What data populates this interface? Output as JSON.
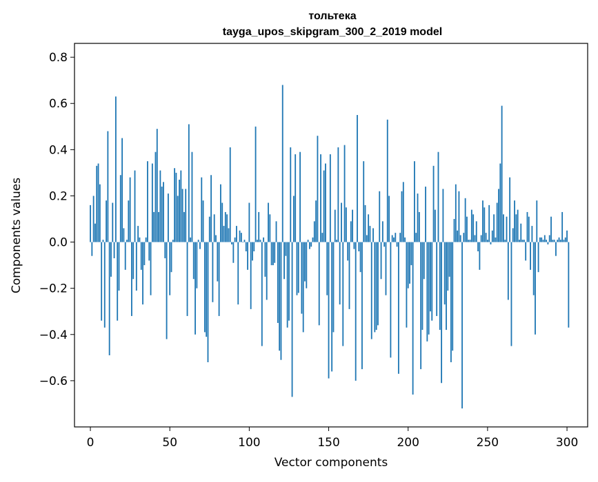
{
  "chart_data": {
    "type": "bar",
    "title": "тольтека",
    "subtitle": "tayga_upos_skipgram_300_2_2019 model",
    "xlabel": "Vector components",
    "ylabel": "Components values",
    "xlim": [
      -10,
      313
    ],
    "ylim": [
      -0.8,
      0.86
    ],
    "xticks": [
      0,
      50,
      100,
      150,
      200,
      250,
      300
    ],
    "yticks": [
      -0.6,
      -0.4,
      -0.2,
      0.0,
      0.2,
      0.4,
      0.6,
      0.8
    ],
    "xtick_labels": [
      "0",
      "50",
      "100",
      "150",
      "200",
      "250",
      "300"
    ],
    "ytick_labels": [
      "−0.6",
      "−0.4",
      "−0.2",
      "0.0",
      "0.2",
      "0.4",
      "0.6",
      "0.8"
    ],
    "bar_color": "#1f77b4",
    "grid": false,
    "values": [
      0.16,
      -0.06,
      0.2,
      0.08,
      0.33,
      0.34,
      0.25,
      -0.34,
      0.01,
      -0.37,
      0.18,
      0.48,
      -0.49,
      -0.15,
      0.17,
      -0.07,
      0.63,
      -0.34,
      -0.21,
      0.29,
      0.45,
      0.06,
      -0.12,
      0.01,
      0.18,
      0.28,
      -0.32,
      -0.16,
      0.31,
      -0.21,
      0.07,
      0.02,
      -0.12,
      -0.27,
      -0.1,
      0.02,
      0.35,
      -0.08,
      -0.23,
      0.34,
      0.13,
      0.39,
      0.49,
      0.13,
      0.31,
      0.24,
      0.26,
      -0.07,
      -0.42,
      0.21,
      -0.23,
      -0.13,
      0.01,
      0.32,
      0.3,
      0.2,
      0.27,
      0.31,
      0.23,
      0.13,
      0.23,
      -0.32,
      0.51,
      0.02,
      0.39,
      -0.16,
      -0.4,
      -0.2,
      0.01,
      -0.03,
      0.28,
      0.18,
      -0.39,
      -0.41,
      -0.52,
      0.11,
      0.29,
      -0.26,
      0.12,
      0.03,
      -0.17,
      -0.32,
      0.25,
      0.17,
      0.07,
      0.13,
      0.12,
      0.06,
      0.41,
      -0.01,
      -0.09,
      0.02,
      0.07,
      -0.27,
      0.05,
      0.04,
      0.0,
      0.01,
      -0.04,
      -0.12,
      0.17,
      -0.29,
      -0.08,
      -0.04,
      0.5,
      0.01,
      0.13,
      0.01,
      -0.45,
      0.02,
      -0.15,
      -0.25,
      0.17,
      0.12,
      -0.1,
      -0.1,
      -0.09,
      0.09,
      -0.35,
      -0.47,
      -0.51,
      0.68,
      -0.16,
      -0.06,
      -0.37,
      -0.34,
      0.41,
      -0.67,
      0.2,
      0.38,
      -0.23,
      -0.22,
      0.39,
      -0.31,
      -0.39,
      -0.17,
      -0.2,
      0.01,
      -0.03,
      -0.02,
      0.02,
      0.09,
      0.18,
      0.46,
      -0.36,
      0.38,
      0.04,
      0.31,
      0.34,
      -0.23,
      -0.59,
      0.38,
      -0.56,
      -0.39,
      0.14,
      0.01,
      0.41,
      -0.27,
      0.17,
      -0.45,
      0.42,
      0.15,
      -0.08,
      -0.29,
      0.09,
      0.14,
      -0.03,
      -0.6,
      0.55,
      -0.04,
      -0.13,
      -0.55,
      0.35,
      0.16,
      0.03,
      0.12,
      0.07,
      -0.42,
      0.06,
      -0.39,
      -0.38,
      -0.36,
      0.22,
      -0.16,
      0.09,
      -0.02,
      -0.23,
      0.53,
      0.2,
      -0.5,
      0.03,
      0.02,
      0.04,
      -0.02,
      -0.57,
      0.04,
      0.22,
      0.26,
      0.02,
      -0.37,
      -0.2,
      -0.18,
      -0.1,
      -0.66,
      0.35,
      0.04,
      0.21,
      0.13,
      -0.55,
      -0.38,
      -0.16,
      0.24,
      -0.43,
      -0.4,
      -0.3,
      -0.34,
      0.33,
      0.14,
      -0.32,
      0.39,
      -0.38,
      -0.61,
      0.23,
      -0.27,
      -0.38,
      -0.21,
      -0.15,
      -0.52,
      -0.47,
      0.1,
      0.25,
      0.05,
      0.22,
      0.03,
      -0.72,
      0.04,
      0.19,
      0.11,
      0.01,
      0.01,
      0.14,
      0.12,
      0.03,
      0.09,
      -0.04,
      -0.12,
      0.03,
      0.18,
      0.15,
      0.04,
      0.01,
      0.16,
      -0.01,
      0.05,
      0.12,
      0.02,
      0.17,
      0.23,
      0.34,
      0.59,
      0.12,
      0.01,
      0.11,
      -0.25,
      0.28,
      -0.45,
      0.06,
      0.18,
      0.12,
      0.14,
      0.01,
      0.08,
      0.01,
      0.01,
      -0.08,
      0.13,
      0.11,
      -0.12,
      0.07,
      -0.23,
      -0.4,
      0.18,
      -0.13,
      0.02,
      0.02,
      0.01,
      0.03,
      0.01,
      -0.01,
      0.03,
      0.11,
      0.01,
      0.01,
      -0.06,
      0.01,
      0.02,
      0.01,
      0.13,
      0.01,
      0.02,
      0.05,
      -0.37
    ]
  }
}
